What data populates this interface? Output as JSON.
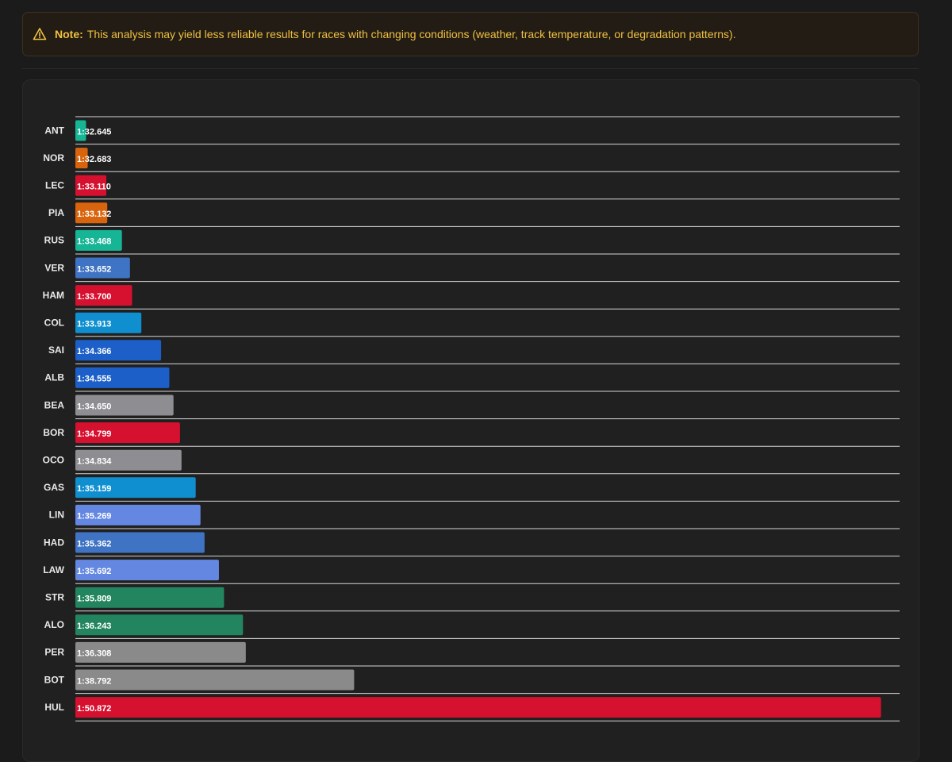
{
  "note": {
    "label": "Note:",
    "text": "This analysis may yield less reliable results for races with changing conditions (weather, track temperature, or degradation patterns).",
    "icon": "warning-triangle-icon",
    "color": "#f0c040"
  },
  "chart_data": {
    "type": "bar",
    "orientation": "horizontal",
    "grid": true,
    "xlim": [
      92.4,
      111.3
    ],
    "categories": [
      "ANT",
      "NOR",
      "LEC",
      "PIA",
      "RUS",
      "VER",
      "HAM",
      "COL",
      "SAI",
      "ALB",
      "BEA",
      "BOR",
      "OCO",
      "GAS",
      "LIN",
      "HAD",
      "LAW",
      "STR",
      "ALO",
      "PER",
      "BOT",
      "HUL"
    ],
    "labels": [
      "1:32.645",
      "1:32.683",
      "1:33.110",
      "1:33.132",
      "1:33.468",
      "1:33.652",
      "1:33.700",
      "1:33.913",
      "1:34.366",
      "1:34.555",
      "1:34.650",
      "1:34.799",
      "1:34.834",
      "1:35.159",
      "1:35.269",
      "1:35.362",
      "1:35.692",
      "1:35.809",
      "1:36.243",
      "1:36.308",
      "1:38.792",
      "1:50.872"
    ],
    "values": [
      92.645,
      92.683,
      93.11,
      93.132,
      93.468,
      93.652,
      93.7,
      93.913,
      94.366,
      94.555,
      94.65,
      94.799,
      94.834,
      95.159,
      95.269,
      95.362,
      95.692,
      95.809,
      96.243,
      96.308,
      98.792,
      110.872
    ],
    "colors": [
      "#16b596",
      "#d9640e",
      "#d5112f",
      "#d9640e",
      "#16b596",
      "#3f73c3",
      "#d5112f",
      "#0f8fd0",
      "#1c5fc8",
      "#1c5fc8",
      "#8e8e92",
      "#d5112f",
      "#8e8e92",
      "#0f8fd0",
      "#6488e2",
      "#3f73c3",
      "#6488e2",
      "#23855f",
      "#23855f",
      "#8a8a8a",
      "#8a8a8a",
      "#d5112f"
    ]
  }
}
